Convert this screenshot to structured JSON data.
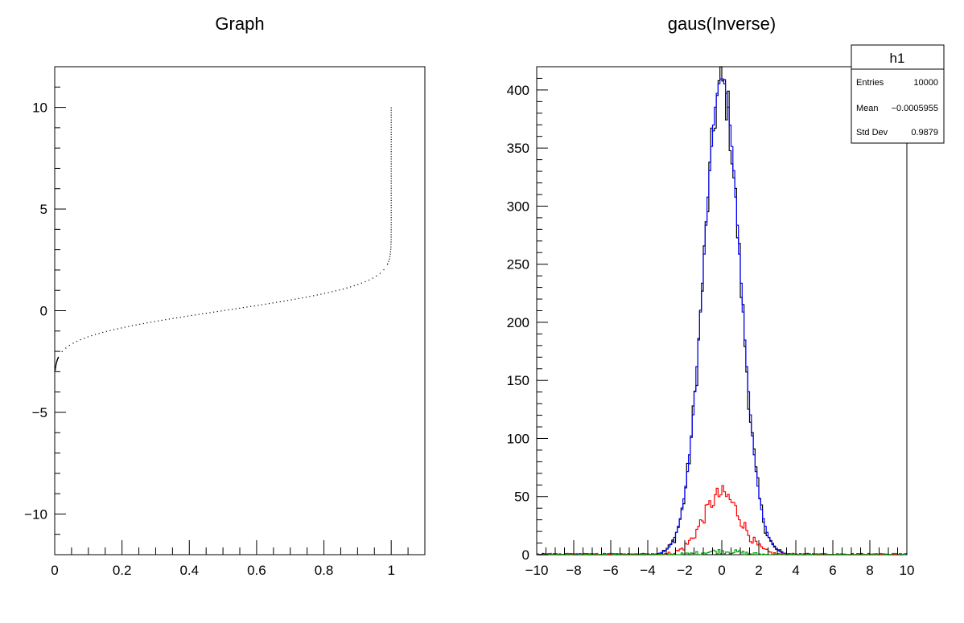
{
  "chart_data": [
    {
      "type": "scatter",
      "title": "Graph",
      "xlabel": "",
      "ylabel": "",
      "xlim": [
        0,
        1.1
      ],
      "ylim": [
        -12,
        12
      ],
      "x_ticks": [
        0,
        0.2,
        0.4,
        0.6,
        0.8,
        1
      ],
      "y_ticks": [
        -10,
        -5,
        0,
        5,
        10
      ],
      "x_tick_labels": [
        "0",
        "0.2",
        "0.4",
        "0.6",
        "0.8",
        "1"
      ],
      "y_tick_labels": [
        "−10",
        "−5",
        "0",
        "5",
        "10"
      ],
      "grid": false,
      "marker_color": "#000000",
      "curve": "inverse normal CDF: y = Phi^-1(x), sampled x in (0,1), tails clipped to [-3, 10]",
      "x": [
        0.0013,
        0.002,
        0.004,
        0.007,
        0.01,
        0.015,
        0.02,
        0.03,
        0.05,
        0.08,
        0.12,
        0.17,
        0.22,
        0.28,
        0.34,
        0.4,
        0.46,
        0.52,
        0.58,
        0.64,
        0.7,
        0.76,
        0.82,
        0.87,
        0.91,
        0.94,
        0.96,
        0.975,
        0.985,
        0.99,
        0.994,
        0.997,
        0.999,
        1.0,
        1.0,
        1.0,
        1.0
      ],
      "y": [
        -3.0,
        -2.88,
        -2.65,
        -2.46,
        -2.33,
        -2.17,
        -2.05,
        -1.88,
        -1.64,
        -1.41,
        -1.17,
        -0.95,
        -0.77,
        -0.58,
        -0.41,
        -0.25,
        -0.1,
        0.05,
        0.2,
        0.36,
        0.52,
        0.71,
        0.92,
        1.13,
        1.34,
        1.55,
        1.75,
        1.96,
        2.17,
        2.33,
        2.51,
        2.75,
        3.09,
        4.5,
        6.5,
        8.5,
        10.0
      ]
    },
    {
      "type": "histogram",
      "title": "gaus(Inverse)",
      "xlabel": "",
      "ylabel": "",
      "xlim": [
        -10,
        10
      ],
      "ylim": [
        0,
        420
      ],
      "x_ticks": [
        -10,
        -8,
        -6,
        -4,
        -2,
        0,
        2,
        4,
        6,
        8,
        10
      ],
      "y_ticks": [
        0,
        50,
        100,
        150,
        200,
        250,
        300,
        350,
        400
      ],
      "x_tick_labels": [
        "−10",
        "−8",
        "−6",
        "−4",
        "−2",
        "0",
        "2",
        "4",
        "6",
        "8",
        "10"
      ],
      "y_tick_labels": [
        "0",
        "50",
        "100",
        "150",
        "200",
        "250",
        "300",
        "350",
        "400"
      ],
      "grid": false,
      "bins": {
        "count": 200,
        "min": -10,
        "max": 10
      },
      "series": [
        {
          "color": "#000000",
          "entries": 10000,
          "mean": 0,
          "sigma": 0.9879,
          "peak": 405
        },
        {
          "color": "#0000ff",
          "entries": 10000,
          "mean": 0,
          "sigma": 0.99,
          "peak": 410
        },
        {
          "color": "#ff0000",
          "entries": 1250,
          "mean": 0,
          "sigma": 1.0,
          "peak": 52
        },
        {
          "color": "#00a000",
          "entries": 60,
          "mean": 0,
          "sigma": 1.0,
          "peak": 3
        }
      ],
      "stats_box": {
        "title": "h1",
        "rows": [
          {
            "label": "Entries",
            "value": "10000"
          },
          {
            "label": "Mean",
            "value": "−0.0005955"
          },
          {
            "label": "Std Dev",
            "value": "0.9879"
          }
        ]
      }
    }
  ]
}
